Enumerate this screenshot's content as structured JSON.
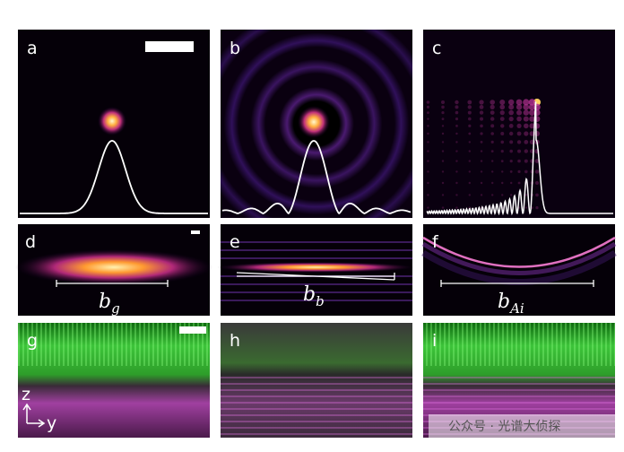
{
  "panels": [
    {
      "letter": "a"
    },
    {
      "letter": "b"
    },
    {
      "letter": "c"
    },
    {
      "letter": "d"
    },
    {
      "letter": "e"
    },
    {
      "letter": "f"
    },
    {
      "letter": "g"
    },
    {
      "letter": "h"
    },
    {
      "letter": "i"
    }
  ],
  "widths": [
    {
      "symbol": "b",
      "subscript": "g"
    },
    {
      "symbol": "b",
      "subscript": "b"
    },
    {
      "symbol": "b",
      "subscript": "Ai"
    }
  ],
  "axes": {
    "vertical": "z",
    "horizontal": "y"
  },
  "watermark": "公众号 · 光谱大侦探"
}
